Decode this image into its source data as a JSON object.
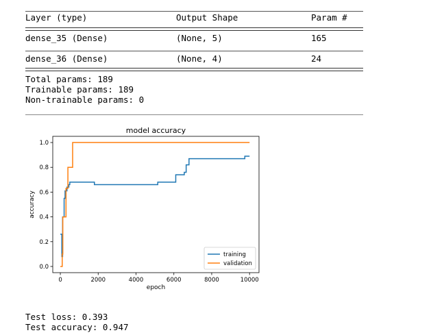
{
  "summary": {
    "headers": [
      "Layer (type)",
      "Output Shape",
      "Param #"
    ],
    "rows": [
      {
        "layer": "dense_35 (Dense)",
        "shape": "(None, 5)",
        "params": "165"
      },
      {
        "layer": "dense_36 (Dense)",
        "shape": "(None, 4)",
        "params": "24"
      }
    ],
    "total": "Total params: 189",
    "trainable": "Trainable params: 189",
    "non_trainable": "Non-trainable params: 0"
  },
  "chart_data": {
    "type": "line",
    "title": "model accuracy",
    "xlabel": "epoch",
    "ylabel": "accuracy",
    "xlim": [
      -400,
      10500
    ],
    "ylim": [
      -0.05,
      1.05
    ],
    "xticks": [
      0,
      2000,
      4000,
      6000,
      8000,
      10000
    ],
    "xtick_labels": [
      "0",
      "2000",
      "4000",
      "6000",
      "8000",
      "10000"
    ],
    "yticks": [
      0.0,
      0.2,
      0.4,
      0.6,
      0.8,
      1.0
    ],
    "ytick_labels": [
      "0.0",
      "0.2",
      "0.4",
      "0.6",
      "0.8",
      "1.0"
    ],
    "legend_position": "lower-right",
    "series": [
      {
        "name": "training",
        "color": "#1f77b4",
        "step": true,
        "x": [
          0,
          80,
          120,
          200,
          250,
          350,
          450,
          500,
          1800,
          1800,
          5150,
          5150,
          6050,
          6100,
          6550,
          6650,
          6800,
          9750,
          10000
        ],
        "y": [
          0.26,
          0.08,
          0.4,
          0.55,
          0.61,
          0.64,
          0.66,
          0.68,
          0.68,
          0.66,
          0.66,
          0.68,
          0.68,
          0.74,
          0.76,
          0.82,
          0.87,
          0.89,
          0.89
        ]
      },
      {
        "name": "validation",
        "color": "#ff7f0e",
        "step": true,
        "x": [
          0,
          100,
          130,
          300,
          400,
          650,
          10000
        ],
        "y": [
          0.0,
          0.1,
          0.4,
          0.63,
          0.8,
          1.0,
          1.0
        ]
      }
    ]
  },
  "results": {
    "loss": "Test loss: 0.393",
    "accuracy": "Test accuracy: 0.947"
  }
}
